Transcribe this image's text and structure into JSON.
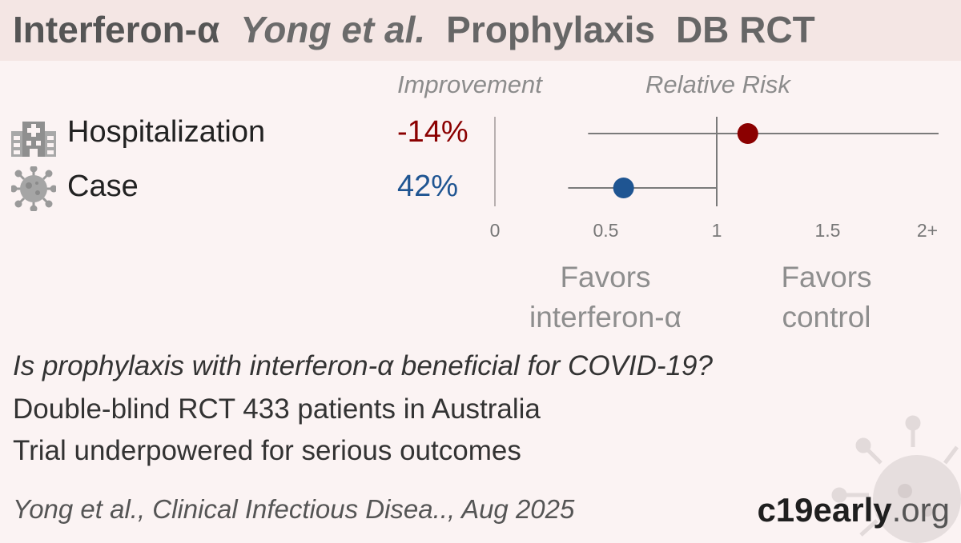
{
  "header": {
    "treatment": "Interferon-α",
    "study": "Yong et al.",
    "setting": "Prophylaxis",
    "design": "DB RCT"
  },
  "columns": {
    "improvement": "Improvement",
    "relative_risk": "Relative Risk"
  },
  "chart_data": {
    "type": "forest",
    "title": "",
    "xlabel": "Relative Risk",
    "xlim": [
      0,
      2
    ],
    "null_value": 1,
    "x_ticks": [
      {
        "value": 0,
        "label": "0"
      },
      {
        "value": 0.5,
        "label": "0.5"
      },
      {
        "value": 1,
        "label": "1"
      },
      {
        "value": 1.5,
        "label": "1.5"
      },
      {
        "value": 2,
        "label": "2+"
      }
    ],
    "rows": [
      {
        "outcome": "Hospitalization",
        "icon": "hospital-icon",
        "improvement": "-14%",
        "rr": 1.14,
        "ci_low": 0.42,
        "ci_high": 2.0,
        "color": "#8b0000"
      },
      {
        "outcome": "Case",
        "icon": "virus-icon",
        "improvement": "42%",
        "rr": 0.58,
        "ci_low": 0.33,
        "ci_high": 1.0,
        "color": "#1f5592"
      }
    ],
    "favors_left": [
      "Favors",
      "interferon-α"
    ],
    "favors_right": [
      "Favors",
      "control"
    ]
  },
  "summary": {
    "question": "Is prophylaxis with interferon-α beneficial for COVID-19?",
    "design_line": "Double-blind RCT 433 patients in Australia",
    "note_line": "Trial underpowered for serious outcomes"
  },
  "footer": {
    "citation": "Yong et al., Clinical Infectious Disea.., Aug 2025",
    "brand_main": "c19early",
    "brand_suffix": ".org"
  }
}
